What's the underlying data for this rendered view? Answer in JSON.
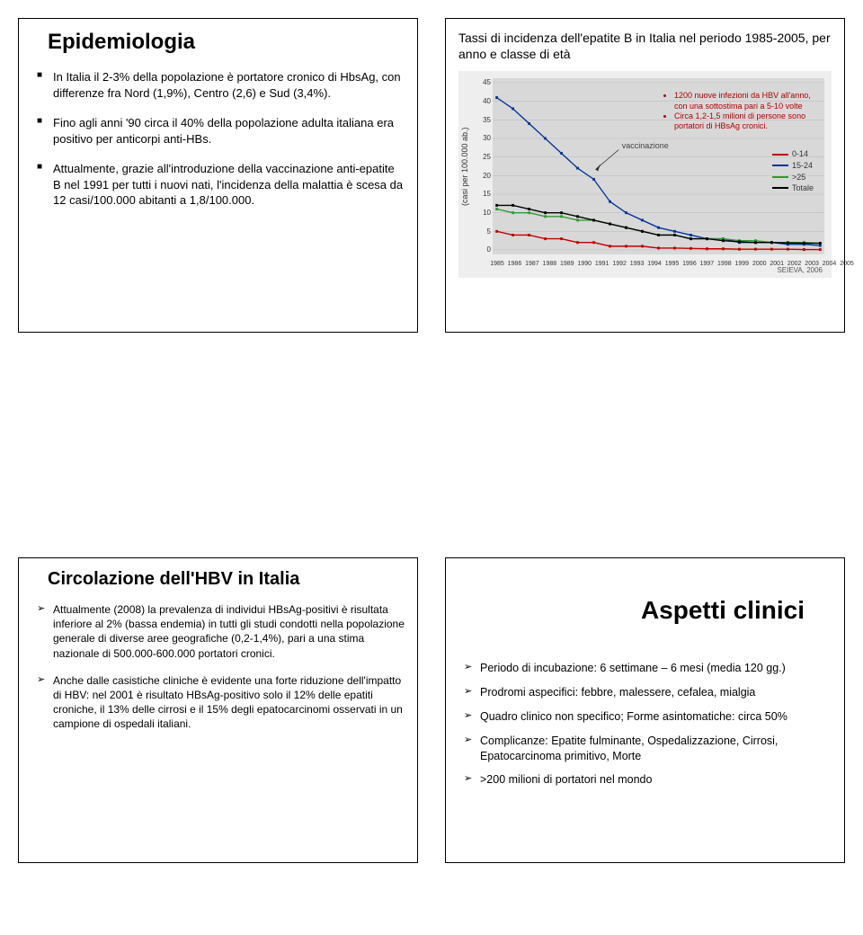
{
  "slide1": {
    "title": "Epidemiologia",
    "bullets": [
      "In Italia il 2-3% della popolazione è portatore cronico di HbsAg, con differenze fra Nord (1,9%), Centro (2,6) e Sud (3,4%).",
      "Fino agli anni '90 circa il 40% della popolazione adulta italiana era positivo per anticorpi anti-HBs.",
      "Attualmente, grazie all'introduzione della vaccinazione anti-epatite B nel 1991 per tutti i nuovi nati, l'incidenza della malattia è scesa da 12 casi/100.000 abitanti a 1,8/100.000."
    ]
  },
  "slide2": {
    "subtitle": "Tassi di incidenza dell'epatite B in Italia nel periodo 1985-2005, per anno e classe di età",
    "chart": {
      "type": "line",
      "ylabel": "(casi per 100.000 ab.)",
      "ylim": [
        0,
        45
      ],
      "ytick_step": 5,
      "yticks": [
        0,
        5,
        10,
        15,
        20,
        25,
        30,
        35,
        40,
        45
      ],
      "xyears": [
        1985,
        1986,
        1987,
        1988,
        1989,
        1990,
        1991,
        1992,
        1993,
        1994,
        1995,
        1996,
        1997,
        1998,
        1999,
        2000,
        2001,
        2002,
        2003,
        2004,
        2005
      ],
      "vacc_label": "vaccinazione",
      "vacc_x": 1991,
      "vacc_y": 26,
      "note_bullets": [
        "1200 nuove infezioni da HBV all'anno, con una sottostima pari a 5-10 volte",
        "Circa 1,2-1,5 milioni di persone sono portatori di HBsAg cronici."
      ],
      "series": [
        {
          "name": "0-14",
          "color": "#c00000",
          "values": [
            5,
            4,
            4,
            3,
            3,
            2,
            2,
            1,
            1,
            1,
            0.5,
            0.5,
            0.4,
            0.3,
            0.3,
            0.2,
            0.2,
            0.2,
            0.2,
            0.1,
            0.1
          ]
        },
        {
          "name": "15-24",
          "color": "#003399",
          "values": [
            41,
            38,
            34,
            30,
            26,
            22,
            19,
            13,
            10,
            8,
            6,
            5,
            4,
            3,
            3,
            2,
            2,
            2,
            1.5,
            1.5,
            1.2
          ]
        },
        {
          "name": ">25",
          "color": "#339933",
          "values": [
            11,
            10,
            10,
            9,
            9,
            8,
            8,
            7,
            6,
            5,
            4,
            4,
            3,
            3,
            3,
            2.5,
            2.5,
            2,
            2,
            2,
            1.8
          ]
        },
        {
          "name": "Totale",
          "color": "#000000",
          "values": [
            12,
            12,
            11,
            10,
            10,
            9,
            8,
            7,
            6,
            5,
            4,
            4,
            3,
            3,
            2.5,
            2.2,
            2,
            2,
            1.9,
            1.8,
            1.8
          ]
        }
      ],
      "legend_labels": [
        "0-14",
        "15-24",
        ">25",
        "Totale"
      ],
      "background_color": "#d8d8d8",
      "grid_color": "#bfbfbf",
      "source": "SEIEVA, 2006"
    }
  },
  "slide3": {
    "title": "Circolazione dell'HBV in Italia",
    "bullets": [
      "Attualmente (2008) la prevalenza di individui HBsAg-positivi è risultata inferiore al 2% (bassa endemia) in tutti gli studi condotti nella popolazione generale di diverse aree geografiche (0,2-1,4%), pari a una stima nazionale di 500.000-600.000 portatori cronici.",
      "Anche dalle casistiche cliniche è evidente una forte riduzione dell'impatto di HBV: nel 2001 è risultato HBsAg-positivo solo il 12% delle epatiti croniche, il 13% delle cirrosi e il 15% degli epatocarcinomi osservati in un campione di ospedali italiani."
    ]
  },
  "slide4": {
    "title": "Aspetti clinici",
    "bullets": [
      "Periodo di incubazione: 6 settimane – 6 mesi (media 120 gg.)",
      "Prodromi aspecifici: febbre, malessere, cefalea, mialgia",
      "Quadro clinico non specifico; Forme asintomatiche: circa 50%",
      "Complicanze: Epatite fulminante, Ospedalizzazione, Cirrosi, Epatocarcinoma primitivo, Morte",
      ">200 milioni di portatori nel mondo"
    ]
  }
}
